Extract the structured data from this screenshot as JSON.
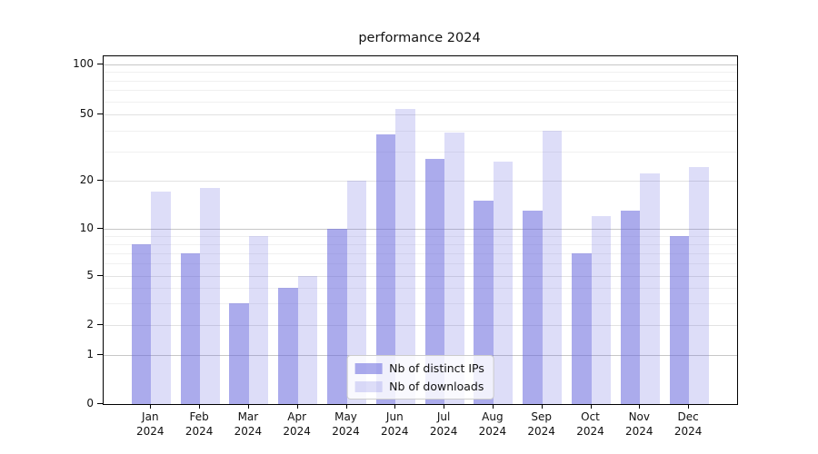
{
  "chart_data": {
    "type": "bar",
    "title": "performance 2024",
    "categories": [
      "Jan",
      "Feb",
      "Mar",
      "Apr",
      "May",
      "Jun",
      "Jul",
      "Aug",
      "Sep",
      "Oct",
      "Nov",
      "Dec"
    ],
    "year": "2024",
    "series": [
      {
        "name": "Nb of distinct IPs",
        "color": "rgba(102,102,221,0.55)",
        "values": [
          8,
          7,
          3,
          4,
          10,
          38,
          27,
          15,
          13,
          7,
          13,
          9
        ]
      },
      {
        "name": "Nb of downloads",
        "color": "rgba(102,102,221,0.22)",
        "values": [
          17,
          18,
          9,
          5,
          20,
          54,
          39,
          26,
          40,
          12,
          22,
          24
        ]
      }
    ],
    "yscale": "symlog",
    "y_ticks": [
      0,
      1,
      2,
      5,
      10,
      20,
      50,
      100
    ],
    "ylim": [
      0,
      110
    ],
    "grid": true,
    "legend_position": "lower center"
  }
}
